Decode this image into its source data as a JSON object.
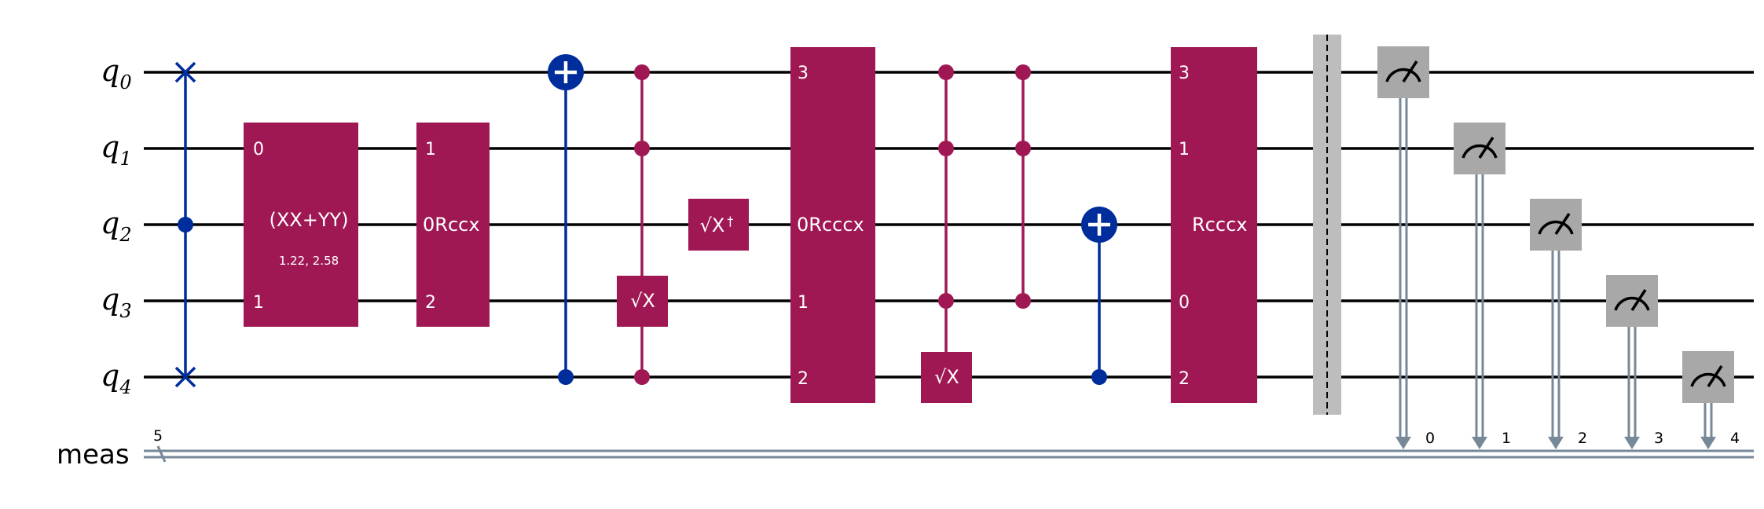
{
  "qubits": [
    {
      "name": "q",
      "index": "0"
    },
    {
      "name": "q",
      "index": "1"
    },
    {
      "name": "q",
      "index": "2"
    },
    {
      "name": "q",
      "index": "3"
    },
    {
      "name": "q",
      "index": "4"
    }
  ],
  "classical": {
    "label": "meas",
    "width": "5"
  },
  "gates": {
    "xxyy": {
      "label": "(XX+YY)",
      "params": "1.22, 2.58",
      "pin_top": "0",
      "pin_bottom": "1"
    },
    "rccx": {
      "label": "0Rccx",
      "pin_1": "1",
      "pin_2": "2"
    },
    "sxdg": {
      "label": "√X",
      "dagger": "†"
    },
    "sx": {
      "label": "√X"
    },
    "rcccx_a": {
      "label": "0Rcccx",
      "pin_q0": "3",
      "pin_q3": "1",
      "pin_q4": "2"
    },
    "sx2": {
      "label": "√X"
    },
    "rcccx_b": {
      "label": "Rcccx",
      "pin_q0": "3",
      "pin_q1": "1",
      "pin_q3": "0",
      "pin_q4": "2"
    }
  },
  "measure_bits": [
    "0",
    "1",
    "2",
    "3",
    "4"
  ],
  "colors": {
    "wire": "#000000",
    "classical_wire": "#778899",
    "gate_magenta": "#9f1853",
    "control_blue": "#002d9c",
    "measure_gray": "#a8a8a8",
    "barrier_gray": "#bdbdbd"
  }
}
